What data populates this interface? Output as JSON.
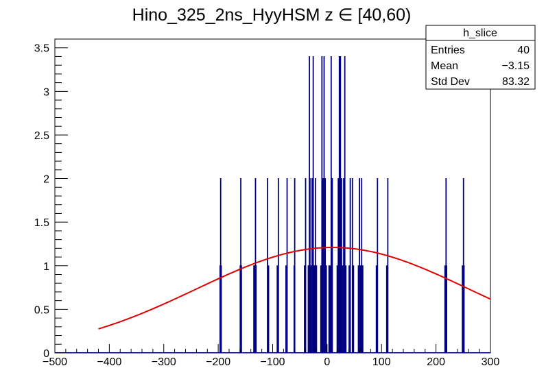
{
  "chart_data": {
    "type": "bar",
    "title": "Hino_325_2ns_HyyHSM z  ∈ [40,60)",
    "xlim": [
      -500,
      300
    ],
    "ylim": [
      0,
      3.6
    ],
    "x_ticks": [
      -500,
      -400,
      -300,
      -200,
      -100,
      0,
      100,
      200,
      300
    ],
    "x_tick_labels": [
      "−500",
      "−400",
      "−300",
      "−200",
      "−100",
      "0",
      "100",
      "200",
      "300"
    ],
    "y_ticks": [
      0,
      0.5,
      1,
      1.5,
      2,
      2.5,
      3,
      3.5
    ],
    "y_tick_labels": [
      "0",
      "0.5",
      "1",
      "1.5",
      "2",
      "2.5",
      "3",
      "3.5"
    ],
    "histogram": {
      "name": "h_slice",
      "color": "#000080",
      "bin_width": 1,
      "spikes": [
        {
          "x": -197,
          "y": 1
        },
        {
          "x": -196,
          "y": 2
        },
        {
          "x": -195,
          "y": 1
        },
        {
          "x": -160,
          "y": 1
        },
        {
          "x": -159,
          "y": 2
        },
        {
          "x": -158,
          "y": 1
        },
        {
          "x": -135,
          "y": 1
        },
        {
          "x": -134,
          "y": 1
        },
        {
          "x": -132,
          "y": 2
        },
        {
          "x": -131,
          "y": 1
        },
        {
          "x": -110,
          "y": 2
        },
        {
          "x": -108,
          "y": 1
        },
        {
          "x": -92,
          "y": 1
        },
        {
          "x": -90,
          "y": 2
        },
        {
          "x": -76,
          "y": 1
        },
        {
          "x": -74,
          "y": 2
        },
        {
          "x": -61,
          "y": 1
        },
        {
          "x": -60,
          "y": 2
        },
        {
          "x": -42,
          "y": 1
        },
        {
          "x": -40,
          "y": 2
        },
        {
          "x": -35,
          "y": 1
        },
        {
          "x": -33,
          "y": 3.4
        },
        {
          "x": -32,
          "y": 2
        },
        {
          "x": -30,
          "y": 1
        },
        {
          "x": -28,
          "y": 2
        },
        {
          "x": -26,
          "y": 3.4
        },
        {
          "x": -24,
          "y": 1
        },
        {
          "x": -22,
          "y": 2
        },
        {
          "x": -20,
          "y": 1
        },
        {
          "x": -12,
          "y": 1
        },
        {
          "x": -10,
          "y": 3.4
        },
        {
          "x": -8,
          "y": 2
        },
        {
          "x": -6,
          "y": 3.4
        },
        {
          "x": -4,
          "y": 2
        },
        {
          "x": -2,
          "y": 1
        },
        {
          "x": 3,
          "y": 1
        },
        {
          "x": 5,
          "y": 1
        },
        {
          "x": 7,
          "y": 3.4
        },
        {
          "x": 9,
          "y": 2
        },
        {
          "x": 18,
          "y": 1
        },
        {
          "x": 20,
          "y": 2
        },
        {
          "x": 22,
          "y": 3.4
        },
        {
          "x": 24,
          "y": 3.4
        },
        {
          "x": 26,
          "y": 2
        },
        {
          "x": 28,
          "y": 1
        },
        {
          "x": 30,
          "y": 2
        },
        {
          "x": 32,
          "y": 3.4
        },
        {
          "x": 34,
          "y": 1
        },
        {
          "x": 40,
          "y": 1
        },
        {
          "x": 42,
          "y": 2
        },
        {
          "x": 46,
          "y": 2
        },
        {
          "x": 48,
          "y": 1
        },
        {
          "x": 57,
          "y": 1
        },
        {
          "x": 59,
          "y": 2
        },
        {
          "x": 61,
          "y": 1
        },
        {
          "x": 63,
          "y": 2
        },
        {
          "x": 65,
          "y": 1
        },
        {
          "x": 90,
          "y": 1
        },
        {
          "x": 92,
          "y": 2
        },
        {
          "x": 109,
          "y": 1
        },
        {
          "x": 111,
          "y": 2
        },
        {
          "x": 216,
          "y": 1
        },
        {
          "x": 218,
          "y": 2
        },
        {
          "x": 219,
          "y": 1
        },
        {
          "x": 248,
          "y": 1
        },
        {
          "x": 250,
          "y": 2
        },
        {
          "x": 251,
          "y": 1
        }
      ]
    },
    "fit": {
      "type": "gaussian",
      "color": "#e00000",
      "x_range": [
        -420,
        300
      ],
      "amplitude": 1.21,
      "mean": 10,
      "sigma": 250
    },
    "stats": {
      "name": "h_slice",
      "rows": [
        {
          "label": "Entries",
          "value": "40"
        },
        {
          "label": "Mean",
          "value": "−3.15"
        },
        {
          "label": "Std Dev",
          "value": "83.32"
        }
      ]
    }
  }
}
